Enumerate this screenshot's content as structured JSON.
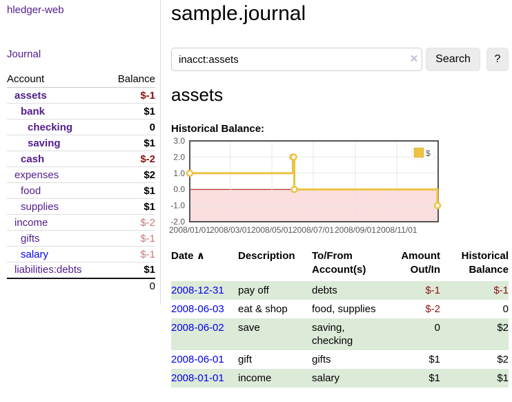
{
  "colors": {
    "link_purple": "#511c8c",
    "link_blue": "#0000ee",
    "negative_strong": "#8c1010",
    "negative_soft": "#c47878",
    "row_green": "#dcead8",
    "button_gray": "#ececec"
  },
  "sidebar": {
    "app_title": "hledger-web",
    "journal_link": "Journal",
    "accounts": {
      "header": {
        "account": "Account",
        "balance": "Balance"
      },
      "rows": [
        {
          "name": "assets",
          "balance": "$-1",
          "depth": 1,
          "in_filter": true,
          "negative": "strong"
        },
        {
          "name": "bank",
          "balance": "$1",
          "depth": 2,
          "in_filter": true,
          "negative": "none"
        },
        {
          "name": "checking",
          "balance": "0",
          "depth": 3,
          "in_filter": true,
          "negative": "none"
        },
        {
          "name": "saving",
          "balance": "$1",
          "depth": 3,
          "in_filter": true,
          "negative": "none"
        },
        {
          "name": "cash",
          "balance": "$-2",
          "depth": 2,
          "in_filter": true,
          "negative": "strong"
        },
        {
          "name": "expenses",
          "balance": "$2",
          "depth": 1,
          "in_filter": false,
          "negative": "none"
        },
        {
          "name": "food",
          "balance": "$1",
          "depth": 2,
          "in_filter": false,
          "negative": "none"
        },
        {
          "name": "supplies",
          "balance": "$1",
          "depth": 2,
          "in_filter": false,
          "negative": "none"
        },
        {
          "name": "income",
          "balance": "$-2",
          "depth": 1,
          "in_filter": false,
          "negative": "soft"
        },
        {
          "name": "gifts",
          "balance": "$-1",
          "depth": 2,
          "in_filter": false,
          "negative": "soft"
        },
        {
          "name": "salary",
          "balance": "$-1",
          "depth": 2,
          "in_filter": false,
          "negative": "soft"
        },
        {
          "name": "liabilities:debts",
          "balance": "$1",
          "depth": 1,
          "in_filter": false,
          "negative": "none"
        }
      ],
      "total": "0"
    }
  },
  "main": {
    "title": "sample.journal",
    "search": {
      "value": "inacct:assets",
      "clear_label": "×",
      "search_button": "Search",
      "help_button": "?"
    },
    "account_heading": "assets",
    "chart_label": "Historical Balance:",
    "register": {
      "headers": {
        "date": "Date",
        "sort_icon": "∧",
        "description": "Description",
        "to_from": "To/From Account(s)",
        "amount": "Amount Out/In",
        "balance": "Historical Balance"
      },
      "rows": [
        {
          "date": "2008-12-31",
          "description": "pay off",
          "to_from": "debts",
          "amount": "$-1",
          "balance": "$-1"
        },
        {
          "date": "2008-06-03",
          "description": "eat & shop",
          "to_from": "food, supplies",
          "amount": "$-2",
          "balance": "0"
        },
        {
          "date": "2008-06-02",
          "description": "save",
          "to_from": "saving, checking",
          "amount": "0",
          "balance": "$2"
        },
        {
          "date": "2008-06-01",
          "description": "gift",
          "to_from": "gifts",
          "amount": "$1",
          "balance": "$2"
        },
        {
          "date": "2008-01-01",
          "description": "income",
          "to_from": "salary",
          "amount": "$1",
          "balance": "$1"
        }
      ]
    }
  },
  "chart_data": {
    "type": "line",
    "step": true,
    "title": "Historical Balance:",
    "series": [
      {
        "name": "$",
        "color": "#edc240",
        "x": [
          "2008-01-01",
          "2008-06-01",
          "2008-06-02",
          "2008-06-03",
          "2008-12-31"
        ],
        "y": [
          1,
          2,
          2,
          0,
          -1
        ]
      }
    ],
    "x_domain": [
      "2008-01-01",
      "2009-01-01"
    ],
    "xticks": [
      "2008/01/01",
      "2008/03/01",
      "2008/05/01",
      "2008/07/01",
      "2008/09/01",
      "2008/11/01"
    ],
    "yticks": [
      "3.0",
      "2.0",
      "1.0",
      "0.0",
      "-1.0",
      "-2.0"
    ],
    "ylim": [
      -2,
      3
    ],
    "grid": true,
    "grid_color": "#e6e6e6",
    "border_color": "#545454",
    "zero_line_color": "#a00000",
    "negative_region": true,
    "negative_fill": "#fbdede",
    "legend": {
      "label": "$",
      "position": "top-right"
    }
  }
}
